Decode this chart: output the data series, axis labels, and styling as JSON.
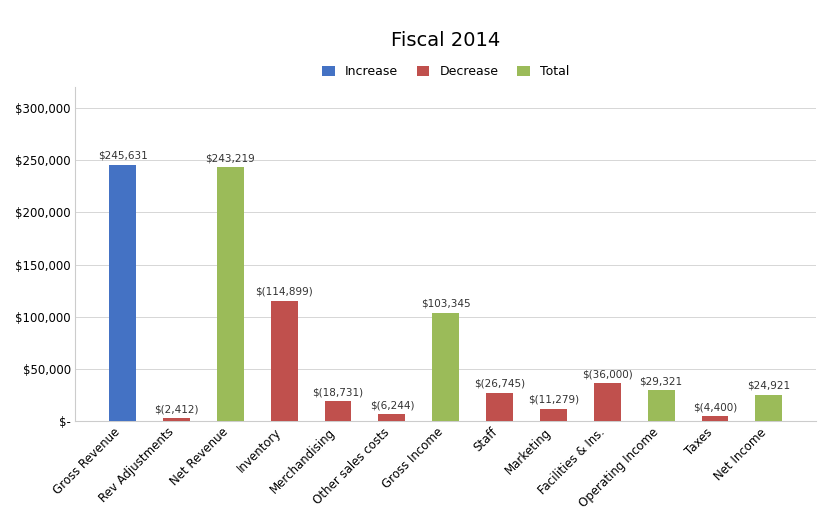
{
  "title": "Fiscal 2014",
  "categories": [
    "Gross Revenue",
    "Rev Adjustments",
    "Net Revenue",
    "Inventory",
    "Merchandising",
    "Other sales costs",
    "Gross Income",
    "Staff",
    "Marketing",
    "Facilities & Ins.",
    "Operating Income",
    "Taxes",
    "Net Income"
  ],
  "bar_values": [
    245631,
    2412,
    243219,
    114899,
    18731,
    6244,
    103345,
    26745,
    11279,
    36000,
    29321,
    4400,
    24921
  ],
  "bar_types": [
    "increase",
    "decrease",
    "total",
    "decrease",
    "decrease",
    "decrease",
    "total",
    "decrease",
    "decrease",
    "decrease",
    "total",
    "decrease",
    "total"
  ],
  "bar_labels": [
    "$245,631",
    "$(2,412)",
    "$243,219",
    "$(114,899)",
    "$(18,731)",
    "$(6,244)",
    "$103,345",
    "$(26,745)",
    "$(11,279)",
    "$(36,000)",
    "$29,321",
    "$(4,400)",
    "$24,921"
  ],
  "increase_color": "#4472C4",
  "decrease_color": "#C0504D",
  "total_color": "#9BBB59",
  "bar_width": 0.5,
  "ylim": [
    0,
    320000
  ],
  "yticks": [
    0,
    50000,
    100000,
    150000,
    200000,
    250000,
    300000
  ],
  "ytick_labels": [
    "$-",
    "$50,000",
    "$100,000",
    "$150,000",
    "$200,000",
    "$250,000",
    "$300,000"
  ],
  "legend_labels": [
    "Increase",
    "Decrease",
    "Total"
  ],
  "background_color": "#ffffff",
  "title_fontsize": 14,
  "label_fontsize": 7.5,
  "grid_color": "#d0d0d0"
}
